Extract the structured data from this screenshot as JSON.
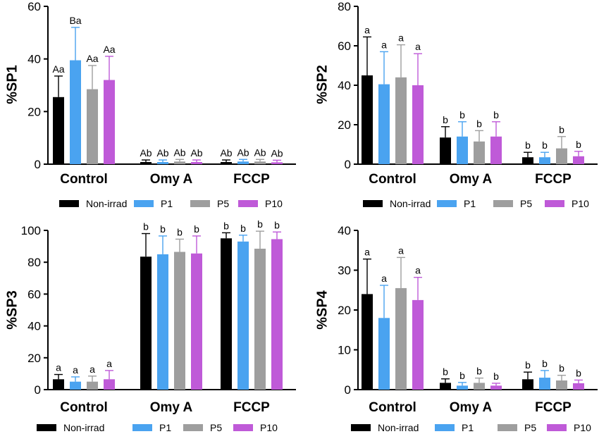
{
  "colors": {
    "non_irrad": "#000000",
    "p1": "#4aa3f0",
    "p5": "#9e9e9e",
    "p10": "#bf5ad8",
    "axis": "#000000"
  },
  "chart_data": [
    {
      "type": "bar",
      "ylabel": "%SP1",
      "ylim": [
        0,
        60
      ],
      "yticks": [
        "0",
        "20",
        "40",
        "60"
      ],
      "categories": [
        "Control",
        "Omy A",
        "FCCP"
      ],
      "legend": [
        "Non-irrad",
        "P1",
        "P5",
        "P10"
      ],
      "series": [
        {
          "name": "Non-irrad",
          "values": [
            25.5,
            0.8,
            0.8
          ],
          "errors": [
            8.0,
            0.8,
            0.8
          ],
          "labels": [
            "Aa",
            "Ab",
            "Ab"
          ]
        },
        {
          "name": "P1",
          "values": [
            39.5,
            0.8,
            1.0
          ],
          "errors": [
            12.5,
            0.8,
            0.8
          ],
          "labels": [
            "Ba",
            "Ab",
            "Ab"
          ]
        },
        {
          "name": "P5",
          "values": [
            28.5,
            1.0,
            1.0
          ],
          "errors": [
            9.0,
            0.8,
            0.8
          ],
          "labels": [
            "Aa",
            "Ab",
            "Ab"
          ]
        },
        {
          "name": "P10",
          "values": [
            32.0,
            0.8,
            0.7
          ],
          "errors": [
            9.0,
            0.8,
            0.8
          ],
          "labels": [
            "Aa",
            "Ab",
            "Ab"
          ]
        }
      ]
    },
    {
      "type": "bar",
      "ylabel": "%SP2",
      "ylim": [
        0,
        80
      ],
      "yticks": [
        "0",
        "20",
        "40",
        "60",
        "80"
      ],
      "categories": [
        "Control",
        "Omy A",
        "FCCP"
      ],
      "legend": [
        "Non-irrad",
        "P1",
        "P5",
        "P10"
      ],
      "series": [
        {
          "name": "Non-irrad",
          "values": [
            45.0,
            13.5,
            3.5
          ],
          "errors": [
            19.5,
            5.5,
            2.5
          ],
          "labels": [
            "a",
            "b",
            "b"
          ]
        },
        {
          "name": "P1",
          "values": [
            40.5,
            14.0,
            3.5
          ],
          "errors": [
            16.5,
            7.5,
            2.5
          ],
          "labels": [
            "a",
            "b",
            "b"
          ]
        },
        {
          "name": "P5",
          "values": [
            44.0,
            11.5,
            8.0
          ],
          "errors": [
            16.5,
            5.5,
            6.0
          ],
          "labels": [
            "a",
            "b",
            "b"
          ]
        },
        {
          "name": "P10",
          "values": [
            40.0,
            14.0,
            4.0
          ],
          "errors": [
            16.0,
            7.5,
            2.5
          ],
          "labels": [
            "a",
            "b",
            "b"
          ]
        }
      ]
    },
    {
      "type": "bar",
      "ylabel": "%SP3",
      "ylim": [
        0,
        100
      ],
      "yticks": [
        "0",
        "20",
        "40",
        "60",
        "80",
        "100"
      ],
      "categories": [
        "Control",
        "Omy A",
        "FCCP"
      ],
      "legend": [
        "Non-irrad",
        "P1",
        "P5",
        "P10"
      ],
      "series": [
        {
          "name": "Non-irrad",
          "values": [
            6.5,
            83.5,
            95.0
          ],
          "errors": [
            3.0,
            14.5,
            3.5
          ],
          "labels": [
            "a",
            "b",
            "b"
          ]
        },
        {
          "name": "P1",
          "values": [
            5.0,
            85.0,
            93.0
          ],
          "errors": [
            3.0,
            11.5,
            4.0
          ],
          "labels": [
            "a",
            "b",
            "b"
          ]
        },
        {
          "name": "P5",
          "values": [
            5.0,
            86.5,
            88.5
          ],
          "errors": [
            3.5,
            8.0,
            11.0
          ],
          "labels": [
            "a",
            "b",
            "b"
          ]
        },
        {
          "name": "P10",
          "values": [
            6.5,
            85.5,
            94.5
          ],
          "errors": [
            5.5,
            11.0,
            4.5
          ],
          "labels": [
            "a",
            "b",
            "b"
          ]
        }
      ]
    },
    {
      "type": "bar",
      "ylabel": "%SP4",
      "ylim": [
        0,
        40
      ],
      "yticks": [
        "0",
        "10",
        "20",
        "30",
        "40"
      ],
      "categories": [
        "Control",
        "Omy A",
        "FCCP"
      ],
      "legend": [
        "Non-irrad",
        "P1",
        "P5",
        "P10"
      ],
      "series": [
        {
          "name": "Non-irrad",
          "values": [
            24.0,
            1.7,
            2.6
          ],
          "errors": [
            8.8,
            1.0,
            1.8
          ],
          "labels": [
            "a",
            "b",
            "b"
          ]
        },
        {
          "name": "P1",
          "values": [
            18.0,
            1.0,
            3.0
          ],
          "errors": [
            8.2,
            0.8,
            1.8
          ],
          "labels": [
            "a",
            "b",
            "b"
          ]
        },
        {
          "name": "P5",
          "values": [
            25.5,
            1.7,
            2.3
          ],
          "errors": [
            7.7,
            1.2,
            1.3
          ],
          "labels": [
            "a",
            "b",
            "b"
          ]
        },
        {
          "name": "P10",
          "values": [
            22.5,
            1.0,
            1.6
          ],
          "errors": [
            5.7,
            0.6,
            0.8
          ],
          "labels": [
            "a",
            "b",
            "b"
          ]
        }
      ]
    }
  ]
}
